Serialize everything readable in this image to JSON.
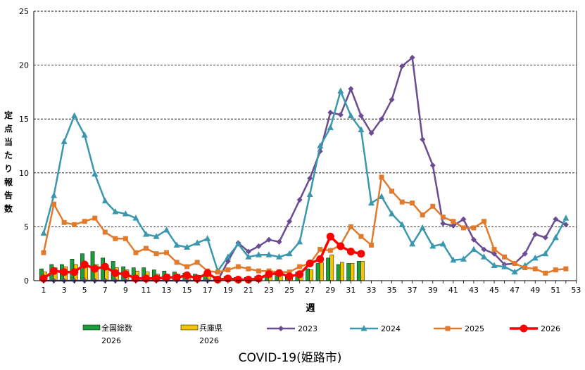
{
  "chart_data": {
    "type": "line",
    "title": "COVID-19(姫路市)",
    "xlabel": "週",
    "ylabel": "定点当たり報告数",
    "xlim": [
      1,
      53
    ],
    "ylim": [
      0,
      25
    ],
    "x_ticks": [
      1,
      3,
      5,
      7,
      9,
      11,
      13,
      15,
      17,
      19,
      21,
      23,
      25,
      27,
      29,
      31,
      33,
      35,
      37,
      39,
      41,
      43,
      45,
      47,
      49,
      51,
      53
    ],
    "y_ticks": [
      0,
      5,
      10,
      15,
      20,
      25
    ],
    "grid": "horizontal",
    "legend_position": "bottom",
    "bar_series": [
      {
        "name": "全国総数",
        "sub": "2026",
        "color": "#1a9e3a",
        "x": [
          1,
          2,
          3,
          4,
          5,
          6,
          7,
          8,
          9,
          10,
          11,
          12,
          13,
          14,
          15,
          16,
          17,
          18,
          19,
          20,
          21,
          22,
          23,
          24,
          25,
          26,
          27,
          28,
          29,
          30,
          31,
          32
        ],
        "values": [
          1.1,
          1.5,
          1.5,
          2.0,
          2.5,
          2.7,
          2.1,
          1.8,
          1.3,
          1.2,
          1.2,
          1.0,
          0.9,
          0.8,
          0.7,
          0.6,
          0.5,
          0.4,
          0.4,
          0.3,
          0.3,
          0.4,
          0.5,
          0.6,
          0.6,
          0.8,
          1.1,
          1.6,
          2.1,
          1.5,
          1.6,
          1.8
        ]
      },
      {
        "name": "兵庫県",
        "sub": "2026",
        "color": "#f5c400",
        "x": [
          1,
          2,
          3,
          4,
          5,
          6,
          7,
          8,
          9,
          10,
          11,
          12,
          13,
          14,
          15,
          16,
          17,
          18,
          19,
          20,
          21,
          22,
          23,
          24,
          25,
          26,
          27,
          28,
          29,
          30,
          31,
          32
        ],
        "values": [
          0.8,
          1.2,
          1.3,
          1.5,
          1.6,
          1.5,
          1.4,
          1.2,
          1.0,
          0.9,
          0.8,
          0.6,
          0.6,
          0.6,
          0.5,
          0.5,
          0.4,
          0.3,
          0.3,
          0.2,
          0.2,
          0.3,
          0.4,
          0.5,
          0.5,
          0.6,
          1.0,
          1.7,
          2.4,
          1.7,
          1.6,
          1.8
        ]
      }
    ],
    "series": [
      {
        "name": "2023",
        "color": "#6a4c93",
        "marker": "diamond",
        "x": [
          1,
          2,
          3,
          4,
          5,
          6,
          7,
          8,
          9,
          10,
          11,
          12,
          13,
          14,
          15,
          16,
          17,
          18,
          19,
          20,
          21,
          22,
          23,
          24,
          25,
          26,
          27,
          28,
          29,
          30,
          31,
          32,
          33,
          34,
          35,
          36,
          37,
          38,
          39,
          40,
          41,
          42,
          43,
          44,
          45,
          46,
          47,
          48,
          49,
          50,
          51,
          52
        ],
        "values": [
          0,
          0,
          0,
          0,
          0,
          0,
          0,
          0,
          0,
          0,
          0,
          0,
          0,
          0,
          0,
          0,
          0,
          0,
          1.8,
          3.5,
          2.7,
          3.2,
          3.8,
          3.6,
          5.5,
          7.5,
          9.5,
          12.0,
          15.6,
          15.4,
          17.8,
          15.3,
          13.7,
          15.0,
          16.8,
          19.9,
          20.7,
          13.1,
          10.7,
          5.3,
          5.1,
          5.7,
          3.8,
          2.9,
          2.5,
          1.5,
          1.6,
          2.5,
          4.3,
          4.0,
          5.7,
          5.2
        ]
      },
      {
        "name": "2024",
        "color": "#3a97ad",
        "marker": "triangle",
        "x": [
          1,
          2,
          3,
          4,
          5,
          6,
          7,
          8,
          9,
          10,
          11,
          12,
          13,
          14,
          15,
          16,
          17,
          18,
          19,
          20,
          21,
          22,
          23,
          24,
          25,
          26,
          27,
          28,
          29,
          30,
          31,
          32,
          33,
          34,
          35,
          36,
          37,
          38,
          39,
          40,
          41,
          42,
          43,
          44,
          45,
          46,
          47,
          48,
          49,
          50,
          51,
          52
        ],
        "values": [
          4.4,
          7.9,
          12.9,
          15.3,
          13.5,
          9.9,
          7.4,
          6.4,
          6.2,
          5.8,
          4.3,
          4.1,
          4.7,
          3.3,
          3.1,
          3.5,
          3.9,
          0.9,
          2.2,
          3.4,
          2.2,
          2.4,
          2.4,
          2.2,
          2.5,
          3.6,
          8.0,
          12.5,
          14.2,
          17.6,
          15.3,
          14.0,
          7.2,
          7.8,
          6.2,
          5.2,
          3.4,
          4.9,
          3.2,
          3.4,
          1.9,
          2.0,
          2.9,
          2.2,
          1.4,
          1.3,
          0.8,
          1.4,
          2.1,
          2.5,
          4.0,
          5.8
        ]
      },
      {
        "name": "2025",
        "color": "#e07b2e",
        "marker": "square",
        "x": [
          1,
          2,
          3,
          4,
          5,
          6,
          7,
          8,
          9,
          10,
          11,
          12,
          13,
          14,
          15,
          16,
          17,
          18,
          19,
          20,
          21,
          22,
          23,
          24,
          25,
          26,
          27,
          28,
          29,
          30,
          31,
          32,
          33,
          34,
          35,
          36,
          37,
          38,
          39,
          40,
          41,
          42,
          43,
          44,
          45,
          46,
          47,
          48,
          49,
          50,
          51,
          52
        ],
        "values": [
          2.6,
          7.1,
          5.4,
          5.2,
          5.5,
          5.8,
          4.5,
          3.9,
          3.9,
          2.6,
          3.0,
          2.5,
          2.6,
          1.7,
          1.3,
          1.7,
          0.9,
          0.8,
          1.0,
          1.3,
          1.1,
          0.9,
          0.9,
          0.8,
          0.8,
          1.3,
          1.6,
          2.9,
          2.8,
          3.3,
          5.0,
          4.1,
          3.3,
          9.6,
          8.3,
          7.3,
          7.2,
          6.1,
          6.9,
          5.9,
          5.5,
          4.9,
          4.9,
          5.5,
          2.9,
          2.2,
          1.6,
          1.2,
          1.1,
          0.7,
          1.0,
          1.1
        ]
      },
      {
        "name": "2026",
        "color": "#ff0000",
        "marker": "circle",
        "x": [
          1,
          2,
          3,
          4,
          5,
          6,
          7,
          8,
          9,
          10,
          11,
          12,
          13,
          14,
          15,
          16,
          17,
          18,
          19,
          20,
          21,
          22,
          23,
          24,
          25,
          26,
          27,
          28,
          29,
          30,
          31,
          32
        ],
        "values": [
          0.2,
          0.9,
          0.8,
          0.8,
          1.5,
          1.1,
          1.3,
          0.7,
          0.6,
          0.2,
          0.2,
          0.2,
          0.3,
          0.3,
          0.5,
          0.2,
          0.7,
          0.1,
          0.2,
          0.1,
          0.1,
          0.2,
          0.6,
          0.7,
          0.4,
          0.6,
          1.6,
          2.0,
          4.1,
          3.2,
          2.7,
          2.5
        ]
      }
    ]
  }
}
